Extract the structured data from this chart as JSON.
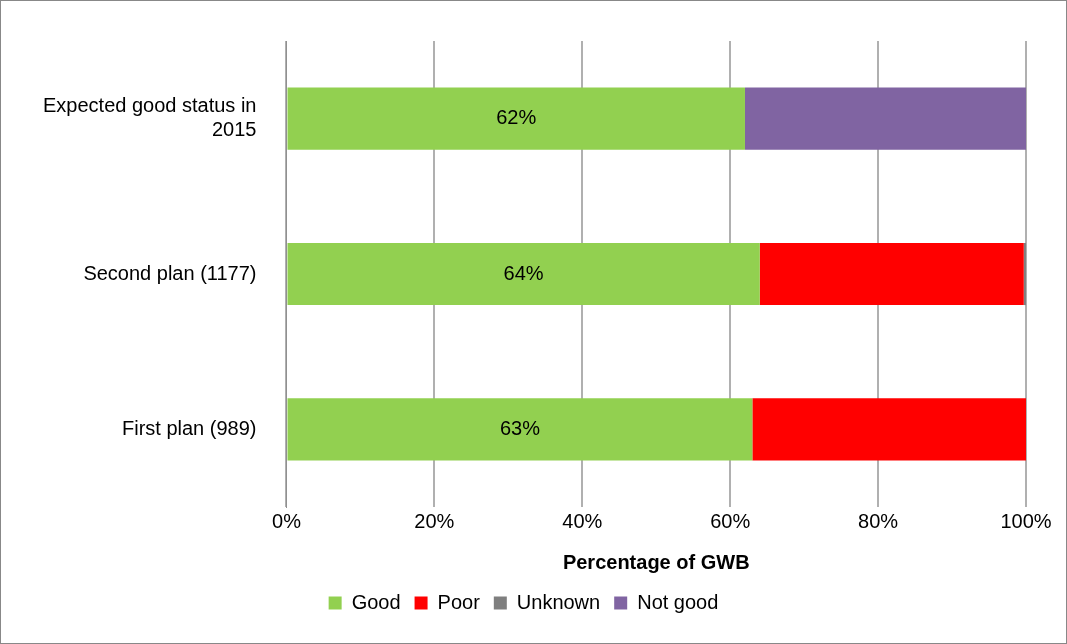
{
  "chart_data": {
    "type": "bar",
    "orientation": "horizontal",
    "stacked": true,
    "xlabel": "Percentage of GWB",
    "categories": [
      "Expected good status in 2015",
      "Second plan (1177)",
      "First plan (989)"
    ],
    "series": [
      {
        "name": "Good",
        "color": "#92d050",
        "values": [
          62,
          64,
          63
        ],
        "value_labels": [
          "62%",
          "64%",
          "63%"
        ]
      },
      {
        "name": "Poor",
        "color": "#ff0000",
        "values": [
          0,
          35.7,
          37
        ]
      },
      {
        "name": "Unknown",
        "color": "#7f7f7f",
        "values": [
          0,
          0.3,
          0
        ]
      },
      {
        "name": "Not good",
        "color": "#8064a2",
        "values": [
          38,
          0,
          0
        ]
      }
    ],
    "xlim": [
      0,
      100
    ],
    "xticks": [
      {
        "value": 0,
        "label": "0%"
      },
      {
        "value": 20,
        "label": "20%"
      },
      {
        "value": 40,
        "label": "40%"
      },
      {
        "value": 60,
        "label": "60%"
      },
      {
        "value": 80,
        "label": "80%"
      },
      {
        "value": 100,
        "label": "100%"
      }
    ],
    "grid": "x",
    "legend": "bottom"
  }
}
